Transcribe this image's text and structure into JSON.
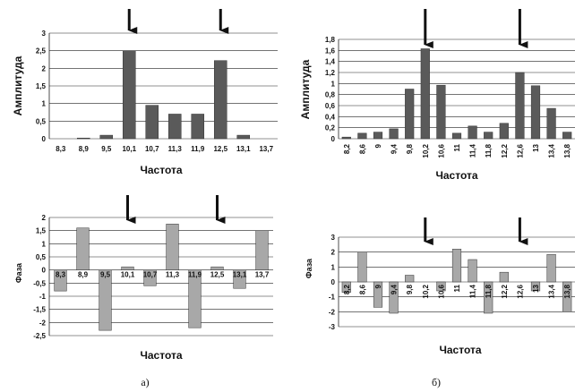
{
  "chart_data": [
    {
      "id": "a_amp",
      "type": "bar",
      "categories": [
        "8,3",
        "8,9",
        "9,5",
        "10,1",
        "10,7",
        "11,3",
        "11,9",
        "12,5",
        "13,1",
        "13,7"
      ],
      "values": [
        0,
        0.02,
        0.1,
        2.5,
        0.95,
        0.7,
        0.7,
        2.22,
        0.1,
        0
      ],
      "xlabel": "Частота",
      "ylabel": "Амплитуда",
      "ylim": [
        0,
        3
      ],
      "yticks": [
        "0",
        "0,5",
        "1",
        "1,5",
        "2",
        "2,5",
        "3"
      ],
      "ytick_values": [
        0,
        0.5,
        1,
        1.5,
        2,
        2.5,
        3
      ],
      "grid": true,
      "bar_color": "#5a5a5a",
      "arrows_at": [
        "10,1",
        "12,5"
      ]
    },
    {
      "id": "b_amp",
      "type": "bar",
      "categories": [
        "8,2",
        "8,6",
        "9",
        "9,4",
        "9,8",
        "10,2",
        "10,6",
        "11",
        "11,4",
        "11,8",
        "12,2",
        "12,6",
        "13",
        "13,4",
        "13,8"
      ],
      "values": [
        0.03,
        0.1,
        0.12,
        0.18,
        0.9,
        1.63,
        0.97,
        0.1,
        0.23,
        0.12,
        0.28,
        1.2,
        0.96,
        0.55,
        0.12
      ],
      "xlabel": "Частота",
      "ylabel": "Амплитуда",
      "ylim": [
        0,
        1.8
      ],
      "yticks": [
        "0",
        "0,2",
        "0,4",
        "0,6",
        "0,8",
        "1",
        "1,2",
        "1,4",
        "1,6",
        "1,8"
      ],
      "ytick_values": [
        0,
        0.2,
        0.4,
        0.6,
        0.8,
        1,
        1.2,
        1.4,
        1.6,
        1.8
      ],
      "grid": true,
      "bar_color": "#5a5a5a",
      "arrows_at": [
        "10,2",
        "12,6"
      ]
    },
    {
      "id": "a_phase",
      "type": "bar",
      "categories": [
        "8,3",
        "8,9",
        "9,5",
        "10,1",
        "10,7",
        "11,3",
        "11,9",
        "12,5",
        "13,1",
        "13,7"
      ],
      "values": [
        -0.8,
        1.6,
        -2.3,
        0.12,
        -0.6,
        1.75,
        -2.2,
        0.12,
        -0.7,
        1.5
      ],
      "xlabel": "Частота",
      "ylabel": "Фаза",
      "ylim": [
        -2.5,
        2
      ],
      "yticks": [
        "-2,5",
        "-2",
        "-1,5",
        "-1",
        "-0,5",
        "0",
        "0,5",
        "1",
        "1,5",
        "2"
      ],
      "ytick_values": [
        -2.5,
        -2,
        -1.5,
        -1,
        -0.5,
        0,
        0.5,
        1,
        1.5,
        2
      ],
      "grid": true,
      "bar_color": "#a8a8a8",
      "arrows_at": [
        "10,1",
        "12,5"
      ]
    },
    {
      "id": "b_phase",
      "type": "bar",
      "categories": [
        "8,2",
        "8,6",
        "9",
        "9,4",
        "9,8",
        "10,2",
        "10,6",
        "11",
        "11,4",
        "11,8",
        "12,2",
        "12,6",
        "13",
        "13,4",
        "13,8"
      ],
      "values": [
        -0.7,
        2.0,
        -1.7,
        -2.1,
        0.45,
        0,
        -0.6,
        2.2,
        1.5,
        -2.1,
        0.65,
        0,
        -0.6,
        1.85,
        -2.0
      ],
      "xlabel": "Частота",
      "ylabel": "Фаза",
      "ylim": [
        -3,
        3
      ],
      "yticks": [
        "-3",
        "-2",
        "-1",
        "0",
        "1",
        "2",
        "3"
      ],
      "ytick_values": [
        -3,
        -2,
        -1,
        0,
        1,
        2,
        3
      ],
      "grid": true,
      "bar_color": "#a8a8a8",
      "arrows_at": [
        "10,2",
        "12,6"
      ]
    }
  ],
  "panel_labels": {
    "a": "а)",
    "b": "б)"
  }
}
